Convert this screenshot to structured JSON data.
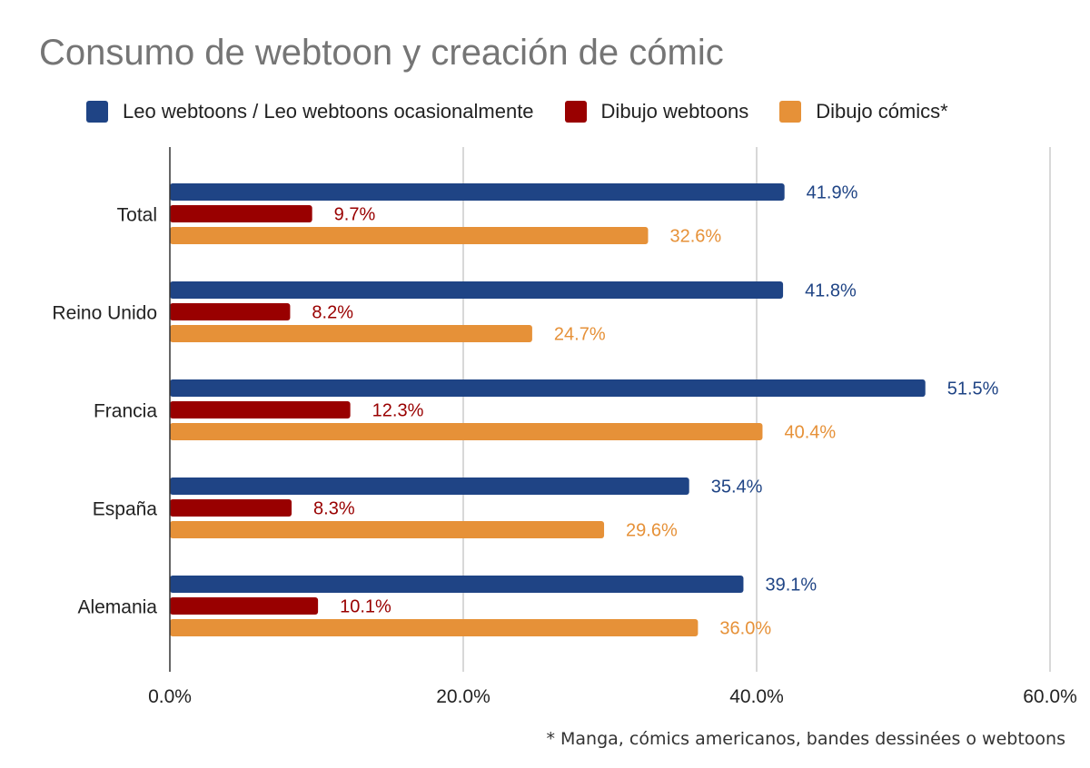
{
  "chart_data": {
    "type": "bar",
    "orientation": "horizontal",
    "title": "Consumo de webtoon y creación de cómic",
    "categories": [
      "Total",
      "Reino Unido",
      "Francia",
      "España",
      "Alemania"
    ],
    "series": [
      {
        "name": "Leo webtoons / Leo webtoons ocasionalmente",
        "color": "#1f4485",
        "values": [
          41.9,
          41.8,
          51.5,
          35.4,
          39.1
        ],
        "labels": [
          "41.9%",
          "41.8%",
          "51.5%",
          "35.4%",
          "39.1%"
        ]
      },
      {
        "name": "Dibujo webtoons",
        "color": "#990000",
        "values": [
          9.7,
          8.2,
          12.3,
          8.3,
          10.1
        ],
        "labels": [
          "9.7%",
          "8.2%",
          "12.3%",
          "8.3%",
          "10.1%"
        ]
      },
      {
        "name": "Dibujo cómics*",
        "color": "#e69138",
        "values": [
          32.6,
          24.7,
          40.4,
          29.6,
          36.0
        ],
        "labels": [
          "32.6%",
          "24.7%",
          "40.4%",
          "29.6%",
          "36.0%"
        ]
      }
    ],
    "xlim": [
      0,
      60
    ],
    "xticks": [
      0,
      20,
      40,
      60
    ],
    "xtick_labels": [
      "0.0%",
      "20.0%",
      "40.0%",
      "60.0%"
    ],
    "grid": true,
    "legend_position": "top-left",
    "footnote": "* Manga, cómics americanos, bandes dessinées o webtoons"
  }
}
